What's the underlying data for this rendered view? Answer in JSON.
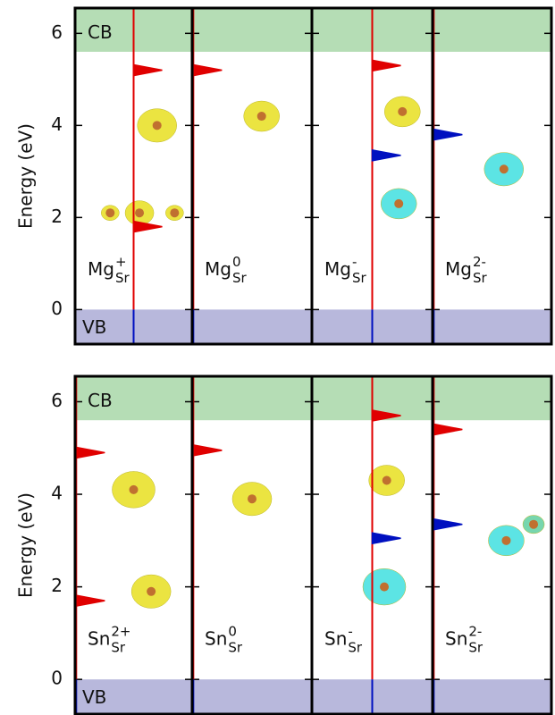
{
  "chart_data": [
    {
      "type": "defect-levels",
      "ylabel": "Energy (eV)",
      "ylim": [
        -0.75,
        6.55
      ],
      "yticks": [
        0,
        2,
        4,
        6
      ],
      "cb_label": "CB",
      "vb_label": "VB",
      "cb_min": 5.6,
      "vb_max": 0,
      "defects": [
        {
          "species": "Mg",
          "site": "Sr",
          "charge": "+",
          "levels": [
            {
              "energy": 1.8,
              "color": "#e00000"
            },
            {
              "energy": 5.2,
              "color": "#e00000"
            }
          ]
        },
        {
          "species": "Mg",
          "site": "Sr",
          "charge": "0",
          "levels": [
            {
              "energy": 5.2,
              "color": "#e00000"
            }
          ]
        },
        {
          "species": "Mg",
          "site": "Sr",
          "charge": "-",
          "levels": [
            {
              "energy": 5.3,
              "color": "#e00000"
            },
            {
              "energy": 3.35,
              "color": "#0010c0"
            }
          ]
        },
        {
          "species": "Mg",
          "site": "Sr",
          "charge": "2-",
          "levels": [
            {
              "energy": 3.8,
              "color": "#0010c0"
            }
          ]
        }
      ]
    },
    {
      "type": "defect-levels",
      "ylabel": "Energy (eV)",
      "ylim": [
        -0.75,
        6.55
      ],
      "yticks": [
        0,
        2,
        4,
        6
      ],
      "cb_label": "CB",
      "vb_label": "VB",
      "cb_min": 5.6,
      "vb_max": 0,
      "defects": [
        {
          "species": "Sn",
          "site": "Sr",
          "charge": "2+",
          "levels": [
            {
              "energy": 1.7,
              "color": "#e00000"
            },
            {
              "energy": 4.9,
              "color": "#e00000"
            }
          ]
        },
        {
          "species": "Sn",
          "site": "Sr",
          "charge": "0",
          "levels": [
            {
              "energy": 4.95,
              "color": "#e00000"
            }
          ]
        },
        {
          "species": "Sn",
          "site": "Sr",
          "charge": "-",
          "levels": [
            {
              "energy": 5.7,
              "color": "#e00000"
            },
            {
              "energy": 3.05,
              "color": "#0010c0"
            }
          ]
        },
        {
          "species": "Sn",
          "site": "Sr",
          "charge": "2-",
          "levels": [
            {
              "energy": 5.4,
              "color": "#e00000"
            },
            {
              "energy": 3.35,
              "color": "#0010c0"
            }
          ]
        }
      ]
    }
  ]
}
